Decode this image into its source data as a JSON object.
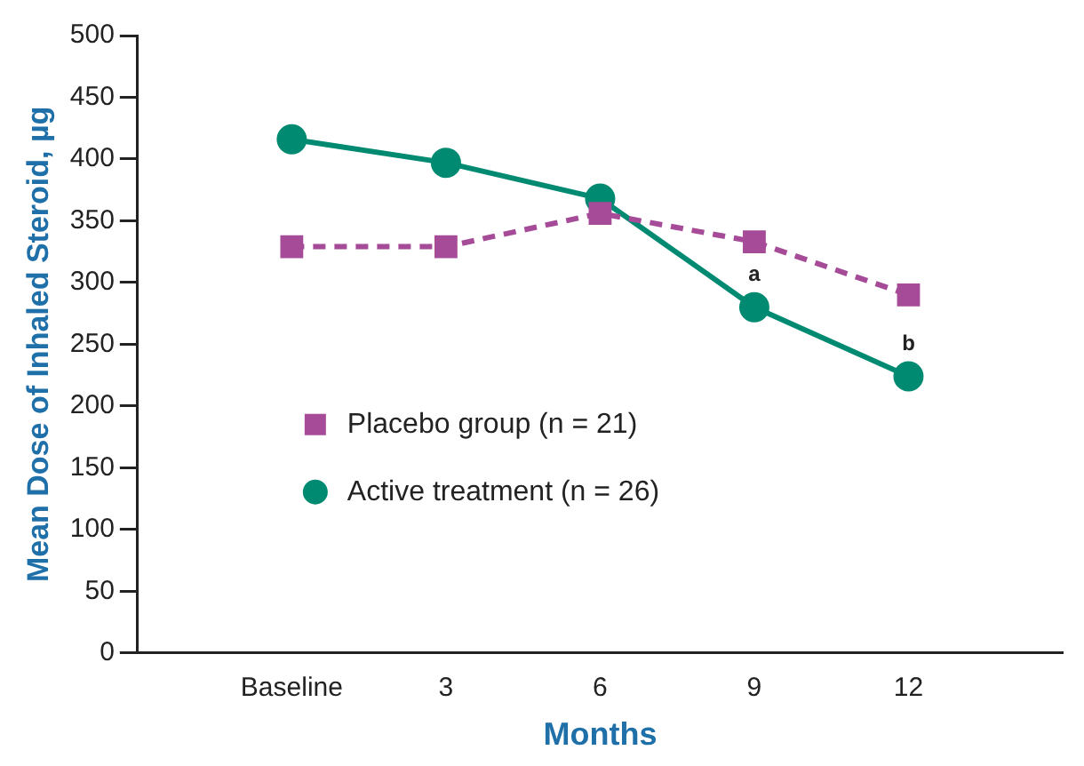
{
  "chart_data": {
    "type": "line",
    "xlabel": "Months",
    "ylabel": "Mean Dose of Inhaled Steroid, µg",
    "categories": [
      null,
      "Baseline",
      "3",
      "6",
      "9",
      "12",
      null
    ],
    "series": [
      {
        "name": "Placebo group (n = 21)",
        "color": "#a64b97",
        "values": [
          null,
          329,
          329,
          356,
          333,
          290,
          null
        ],
        "marker": "square",
        "line_style": "dashed"
      },
      {
        "name": "Active treatment (n = 26)",
        "color": "#008a72",
        "values": [
          null,
          416,
          397,
          368,
          280,
          224,
          null
        ],
        "marker": "circle",
        "line_style": "solid"
      }
    ],
    "ylim": [
      0,
      500
    ],
    "yticks": [
      0,
      50,
      100,
      150,
      200,
      250,
      300,
      350,
      400,
      450,
      500
    ],
    "annotations": [
      {
        "text": "a",
        "x": "9",
        "y": 280
      },
      {
        "text": "b",
        "x": "12",
        "y": 224
      }
    ],
    "grid": false,
    "legend": "left"
  }
}
